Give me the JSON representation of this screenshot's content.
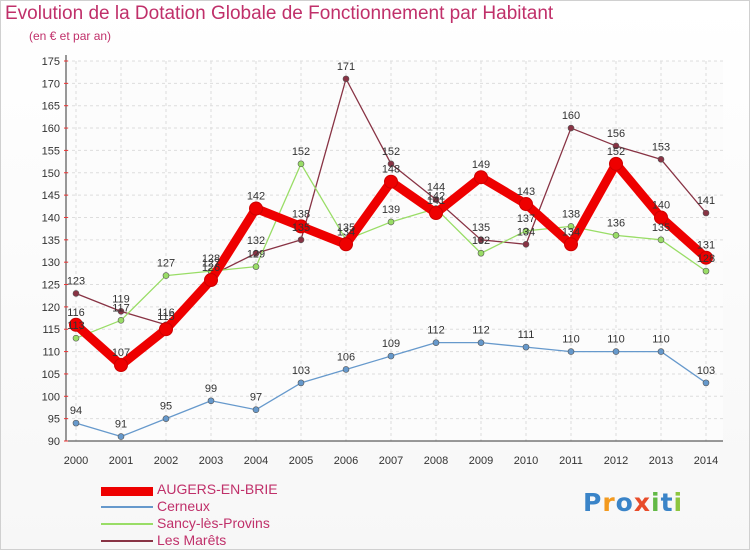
{
  "chart_data": {
    "type": "line",
    "title": "Evolution de la Dotation Globale de Fonctionnement par Habitant",
    "subtitle": "(en € et par an)",
    "xlabel": "",
    "ylabel": "",
    "categories": [
      "2000",
      "2001",
      "2002",
      "2003",
      "2004",
      "2005",
      "2006",
      "2007",
      "2008",
      "2009",
      "2010",
      "2011",
      "2012",
      "2013",
      "2014"
    ],
    "ylim": [
      90,
      175
    ],
    "yticks": [
      90,
      95,
      100,
      105,
      110,
      115,
      120,
      125,
      130,
      135,
      140,
      145,
      150,
      155,
      160,
      165,
      170,
      175
    ],
    "grid": true,
    "legend_position": "bottom-left",
    "series": [
      {
        "name": "AUGERS-EN-BRIE",
        "color": "#ee0000",
        "width": "thick",
        "values": [
          116,
          107,
          115,
          126,
          142,
          138,
          134,
          148,
          141,
          149,
          143,
          134,
          152,
          140,
          131
        ],
        "labels": [
          "116",
          "107",
          "115",
          "126",
          "142",
          "138",
          "134",
          "148",
          "141",
          "149",
          "143",
          "134",
          "152",
          "140",
          "131"
        ]
      },
      {
        "name": "Cerneux",
        "color": "#6699cc",
        "width": "thin",
        "values": [
          94,
          91,
          95,
          99,
          97,
          103,
          106,
          109,
          112,
          112,
          111,
          110,
          110,
          110,
          103
        ],
        "labels": [
          "94",
          "91",
          "95",
          "99",
          "97",
          "103",
          "106",
          "109",
          "112",
          "112",
          "111",
          "110",
          "110",
          "110",
          "103"
        ]
      },
      {
        "name": "Sancy-lès-Provins",
        "color": "#99dd66",
        "width": "thin",
        "values": [
          113,
          117,
          127,
          128,
          129,
          152,
          135,
          139,
          142,
          132,
          137,
          138,
          136,
          135,
          128
        ],
        "labels": [
          "113",
          "117",
          "127",
          "128",
          "129",
          "152",
          "135",
          "139",
          "142",
          "132",
          "137",
          "138",
          "136",
          "135",
          "128"
        ]
      },
      {
        "name": "Les Marêts",
        "color": "#883344",
        "width": "thin",
        "values": [
          123,
          119,
          116,
          127,
          132,
          135,
          171,
          152,
          144,
          135,
          134,
          160,
          156,
          153,
          141
        ],
        "labels": [
          "123",
          "119",
          "116",
          "127",
          "132",
          "135",
          "171",
          "152",
          "144",
          "135",
          "134",
          "160",
          "156",
          "153",
          "141"
        ]
      }
    ]
  },
  "logo": {
    "letters": [
      "P",
      "r",
      "o",
      "x",
      "i",
      "t",
      "i"
    ],
    "colors": [
      "#3a84c8",
      "#f39a1f",
      "#3a84c8",
      "#e84c2a",
      "#62b946",
      "#3a84c8",
      "#8dc63f"
    ]
  }
}
